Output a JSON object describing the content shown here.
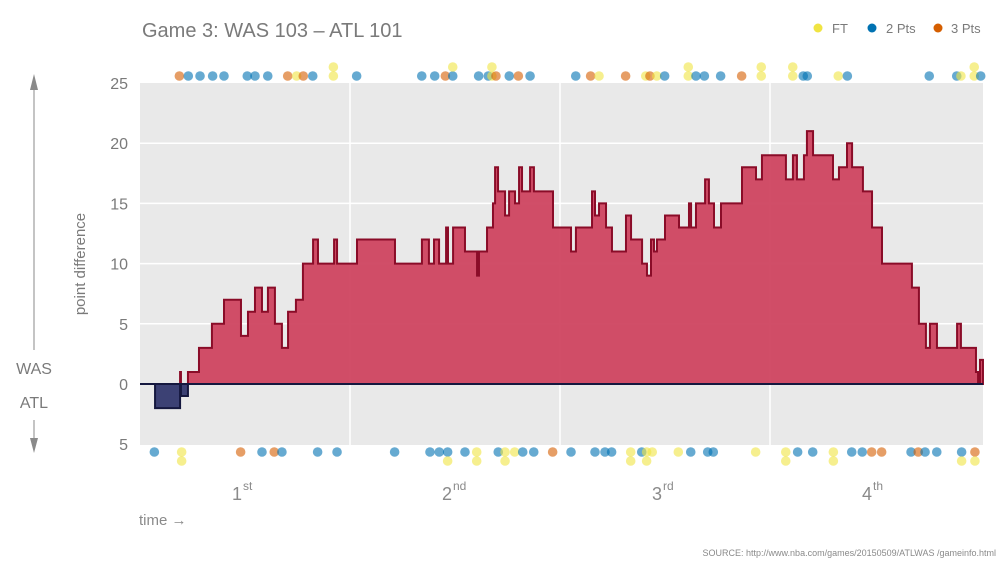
{
  "title": "Game 3: WAS 103  –  ATL 101",
  "legend": [
    {
      "label": "FT",
      "type": "FT",
      "color": "#f0e442"
    },
    {
      "label": "2 Pts",
      "type": "2",
      "color": "#0072b2"
    },
    {
      "label": "3 Pts",
      "type": "3",
      "color": "#d55e00"
    }
  ],
  "side_labels": {
    "top": "WAS",
    "bottom": "ATL"
  },
  "source": "SOURCE: http://www.nba.com/games/20150509/ATLWAS /gameinfo.html",
  "chart_data": {
    "type": "area",
    "step": true,
    "title": "Game 3: WAS 103  –  ATL 101",
    "ylabel": "point difference",
    "xlabel": "time →",
    "xlim": [
      0,
      48.17
    ],
    "ylim": [
      -5,
      25
    ],
    "grid": true,
    "legend_position": "top-right",
    "colors": {
      "was_fill": "#cf4560",
      "was_stroke": "#8a0c28",
      "atl_fill": "#33386e",
      "atl_stroke": "#15183f",
      "background": "#e9e9e9"
    },
    "y_ticks": [
      {
        "value": 25,
        "label": "25"
      },
      {
        "value": 20,
        "label": "20"
      },
      {
        "value": 15,
        "label": "15"
      },
      {
        "value": 10,
        "label": "10"
      },
      {
        "value": 5,
        "label": "5"
      },
      {
        "value": 0,
        "label": "0"
      },
      {
        "value": -5,
        "label": "5"
      }
    ],
    "quarters": [
      {
        "num": "1",
        "sup": "st",
        "center": 6
      },
      {
        "num": "2",
        "sup": "nd",
        "center": 18
      },
      {
        "num": "3",
        "sup": "rd",
        "center": 30
      },
      {
        "num": "4",
        "sup": "th",
        "center": 42
      }
    ],
    "quarter_boundaries": [
      12,
      24,
      36
    ],
    "margin_steps": [
      [
        0,
        0
      ],
      [
        0.86,
        -2
      ],
      [
        2.29,
        1
      ],
      [
        2.34,
        -1
      ],
      [
        2.74,
        1
      ],
      [
        3.37,
        3
      ],
      [
        4.11,
        5
      ],
      [
        4.8,
        7
      ],
      [
        5.77,
        4
      ],
      [
        6.17,
        6
      ],
      [
        6.57,
        8
      ],
      [
        6.97,
        6
      ],
      [
        7.31,
        8
      ],
      [
        7.71,
        5
      ],
      [
        8.11,
        3
      ],
      [
        8.46,
        6
      ],
      [
        8.91,
        7
      ],
      [
        9.31,
        10
      ],
      [
        9.89,
        12
      ],
      [
        10.17,
        10
      ],
      [
        11.09,
        12
      ],
      [
        11.26,
        10
      ],
      [
        12.4,
        12
      ],
      [
        14.57,
        10
      ],
      [
        16.11,
        12
      ],
      [
        16.51,
        10
      ],
      [
        16.8,
        12
      ],
      [
        17.09,
        10
      ],
      [
        17.49,
        13
      ],
      [
        17.6,
        10
      ],
      [
        17.89,
        13
      ],
      [
        18.57,
        11
      ],
      [
        19.26,
        9
      ],
      [
        19.37,
        11
      ],
      [
        19.83,
        13
      ],
      [
        20.17,
        15
      ],
      [
        20.29,
        18
      ],
      [
        20.46,
        16
      ],
      [
        20.86,
        14
      ],
      [
        21.09,
        16
      ],
      [
        21.43,
        15
      ],
      [
        21.66,
        18
      ],
      [
        21.83,
        16
      ],
      [
        22.29,
        18
      ],
      [
        22.51,
        16
      ],
      [
        23.6,
        13
      ],
      [
        24.63,
        11
      ],
      [
        24.91,
        13
      ],
      [
        25.83,
        16
      ],
      [
        26.0,
        14
      ],
      [
        26.23,
        15
      ],
      [
        26.63,
        13
      ],
      [
        26.97,
        11
      ],
      [
        27.77,
        14
      ],
      [
        28.06,
        12
      ],
      [
        28.69,
        10
      ],
      [
        28.97,
        9
      ],
      [
        29.2,
        12
      ],
      [
        29.37,
        11
      ],
      [
        29.54,
        12
      ],
      [
        30.0,
        14
      ],
      [
        30.8,
        13
      ],
      [
        31.37,
        15
      ],
      [
        31.49,
        13
      ],
      [
        31.77,
        15
      ],
      [
        32.29,
        17
      ],
      [
        32.51,
        15
      ],
      [
        32.8,
        13
      ],
      [
        33.2,
        15
      ],
      [
        34.4,
        18
      ],
      [
        35.2,
        17
      ],
      [
        35.54,
        19
      ],
      [
        36.91,
        17
      ],
      [
        37.31,
        19
      ],
      [
        37.54,
        17
      ],
      [
        37.94,
        19
      ],
      [
        38.11,
        21
      ],
      [
        38.46,
        19
      ],
      [
        39.6,
        17
      ],
      [
        39.94,
        18
      ],
      [
        40.4,
        20
      ],
      [
        40.69,
        18
      ],
      [
        41.31,
        16
      ],
      [
        41.83,
        13
      ],
      [
        42.4,
        10
      ],
      [
        44.11,
        8
      ],
      [
        44.51,
        5
      ],
      [
        44.91,
        3
      ],
      [
        45.14,
        5
      ],
      [
        45.54,
        3
      ],
      [
        46.69,
        5
      ],
      [
        46.91,
        3
      ],
      [
        47.77,
        1
      ],
      [
        47.89,
        0
      ],
      [
        48.0,
        2
      ]
    ],
    "end_time": 48.17,
    "was_scores": [
      [
        2.25,
        "3"
      ],
      [
        2.76,
        "2"
      ],
      [
        3.43,
        "2"
      ],
      [
        4.15,
        "2"
      ],
      [
        4.8,
        "2"
      ],
      [
        6.13,
        "2"
      ],
      [
        6.57,
        "2"
      ],
      [
        7.3,
        "2"
      ],
      [
        8.44,
        "3"
      ],
      [
        8.95,
        "FT"
      ],
      [
        9.33,
        "3"
      ],
      [
        9.87,
        "2"
      ],
      [
        11.05,
        "FT"
      ],
      [
        11.05,
        "FT"
      ],
      [
        12.38,
        "2"
      ],
      [
        16.1,
        "2"
      ],
      [
        16.84,
        "2"
      ],
      [
        17.45,
        "3"
      ],
      [
        17.87,
        "2"
      ],
      [
        17.87,
        "FT"
      ],
      [
        19.35,
        "2"
      ],
      [
        19.9,
        "2"
      ],
      [
        20.11,
        "FT"
      ],
      [
        20.11,
        "FT"
      ],
      [
        20.34,
        "3"
      ],
      [
        21.1,
        "2"
      ],
      [
        21.62,
        "3"
      ],
      [
        22.29,
        "2"
      ],
      [
        24.9,
        "2"
      ],
      [
        25.75,
        "3"
      ],
      [
        26.23,
        "FT"
      ],
      [
        27.75,
        "3"
      ],
      [
        28.9,
        "FT"
      ],
      [
        29.14,
        "3"
      ],
      [
        29.53,
        "FT"
      ],
      [
        29.98,
        "2"
      ],
      [
        31.33,
        "FT"
      ],
      [
        31.33,
        "FT"
      ],
      [
        31.77,
        "2"
      ],
      [
        32.25,
        "2"
      ],
      [
        33.18,
        "2"
      ],
      [
        34.38,
        "3"
      ],
      [
        35.5,
        "FT"
      ],
      [
        35.5,
        "FT"
      ],
      [
        37.3,
        "FT"
      ],
      [
        37.3,
        "FT"
      ],
      [
        37.9,
        "2"
      ],
      [
        38.13,
        "2"
      ],
      [
        39.9,
        "FT"
      ],
      [
        40.42,
        "2"
      ],
      [
        45.1,
        "2"
      ],
      [
        46.67,
        "2"
      ],
      [
        46.91,
        "FT"
      ],
      [
        47.67,
        "FT"
      ],
      [
        47.67,
        "FT"
      ],
      [
        48.04,
        "2"
      ]
    ],
    "atl_scores": [
      [
        0.82,
        "2"
      ],
      [
        2.38,
        "FT"
      ],
      [
        2.38,
        "FT"
      ],
      [
        5.75,
        "3"
      ],
      [
        6.97,
        "2"
      ],
      [
        7.67,
        "3"
      ],
      [
        8.11,
        "2"
      ],
      [
        10.15,
        "2"
      ],
      [
        11.26,
        "2"
      ],
      [
        14.55,
        "2"
      ],
      [
        16.57,
        "2"
      ],
      [
        17.1,
        "2"
      ],
      [
        17.58,
        "2"
      ],
      [
        17.58,
        "FT"
      ],
      [
        18.57,
        "2"
      ],
      [
        19.24,
        "FT"
      ],
      [
        19.24,
        "FT"
      ],
      [
        20.47,
        "2"
      ],
      [
        20.86,
        "FT"
      ],
      [
        20.86,
        "FT"
      ],
      [
        21.41,
        "FT"
      ],
      [
        21.87,
        "2"
      ],
      [
        22.5,
        "2"
      ],
      [
        23.58,
        "3"
      ],
      [
        24.63,
        "2"
      ],
      [
        26.0,
        "2"
      ],
      [
        26.57,
        "2"
      ],
      [
        26.95,
        "2"
      ],
      [
        28.04,
        "FT"
      ],
      [
        28.04,
        "FT"
      ],
      [
        28.67,
        "2"
      ],
      [
        28.95,
        "FT"
      ],
      [
        28.95,
        "FT"
      ],
      [
        29.27,
        "FT"
      ],
      [
        30.76,
        "FT"
      ],
      [
        31.47,
        "2"
      ],
      [
        32.44,
        "2"
      ],
      [
        32.76,
        "2"
      ],
      [
        35.18,
        "FT"
      ],
      [
        36.9,
        "FT"
      ],
      [
        36.9,
        "FT"
      ],
      [
        37.58,
        "2"
      ],
      [
        38.44,
        "2"
      ],
      [
        39.62,
        "FT"
      ],
      [
        39.62,
        "FT"
      ],
      [
        40.67,
        "2"
      ],
      [
        41.27,
        "2"
      ],
      [
        41.81,
        "3"
      ],
      [
        42.38,
        "3"
      ],
      [
        44.06,
        "2"
      ],
      [
        44.47,
        "3"
      ],
      [
        44.86,
        "2"
      ],
      [
        45.53,
        "2"
      ],
      [
        46.95,
        "2"
      ],
      [
        46.95,
        "FT"
      ],
      [
        47.71,
        "3"
      ],
      [
        47.71,
        "FT"
      ]
    ]
  }
}
